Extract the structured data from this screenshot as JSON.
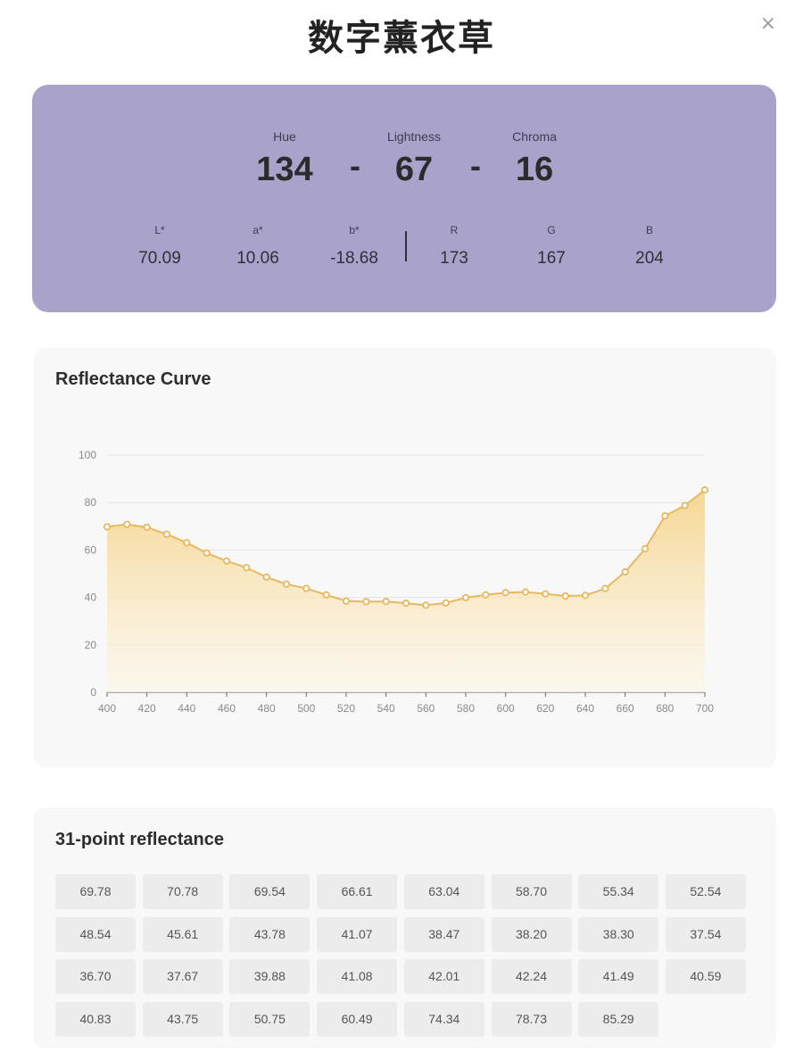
{
  "header": {
    "title": "数字薰衣草",
    "close_symbol": "×"
  },
  "color_card": {
    "background": "#a9a3cb",
    "hue_label": "Hue",
    "hue_value": "134",
    "lightness_label": "Lightness",
    "lightness_value": "67",
    "chroma_label": "Chroma",
    "chroma_value": "16",
    "separator": "-",
    "lab": [
      {
        "label": "L*",
        "value": "70.09"
      },
      {
        "label": "a*",
        "value": "10.06"
      },
      {
        "label": "b*",
        "value": "-18.68"
      }
    ],
    "rgb": [
      {
        "label": "R",
        "value": "173"
      },
      {
        "label": "G",
        "value": "167"
      },
      {
        "label": "B",
        "value": "204"
      }
    ]
  },
  "chart_panel": {
    "title": "Reflectance Curve"
  },
  "chart_data": {
    "type": "area",
    "title": "Reflectance Curve",
    "x": [
      400,
      410,
      420,
      430,
      440,
      450,
      460,
      470,
      480,
      490,
      500,
      510,
      520,
      530,
      540,
      550,
      560,
      570,
      580,
      590,
      600,
      610,
      620,
      630,
      640,
      650,
      660,
      670,
      680,
      690,
      700
    ],
    "y": [
      69.78,
      70.78,
      69.54,
      66.61,
      63.04,
      58.7,
      55.34,
      52.54,
      48.54,
      45.61,
      43.78,
      41.07,
      38.47,
      38.2,
      38.3,
      37.54,
      36.7,
      37.67,
      39.88,
      41.08,
      42.01,
      42.24,
      41.49,
      40.59,
      40.83,
      43.75,
      50.75,
      60.49,
      74.34,
      78.73,
      85.29
    ],
    "xlim": [
      400,
      700
    ],
    "ylim": [
      0,
      100
    ],
    "x_ticks": [
      "400",
      "420",
      "440",
      "460",
      "480",
      "500",
      "520",
      "540",
      "560",
      "580",
      "600",
      "620",
      "640",
      "660",
      "680",
      "700"
    ],
    "y_ticks": [
      "0",
      "20",
      "40",
      "60",
      "80",
      "100"
    ],
    "grid": true,
    "line_color": "#e8b860",
    "fill_top": "#f6d58e",
    "fill_bottom": "#fdf6e6"
  },
  "grid_panel": {
    "title": "31-point reflectance",
    "values": [
      "69.78",
      "70.78",
      "69.54",
      "66.61",
      "63.04",
      "58.70",
      "55.34",
      "52.54",
      "48.54",
      "45.61",
      "43.78",
      "41.07",
      "38.47",
      "38.20",
      "38.30",
      "37.54",
      "36.70",
      "37.67",
      "39.88",
      "41.08",
      "42.01",
      "42.24",
      "41.49",
      "40.59",
      "40.83",
      "43.75",
      "50.75",
      "60.49",
      "74.34",
      "78.73",
      "85.29"
    ]
  }
}
